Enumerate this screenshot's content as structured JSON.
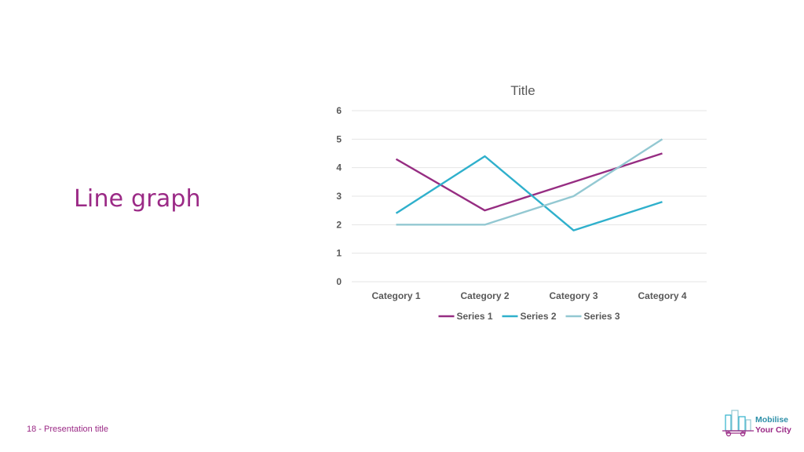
{
  "slide": {
    "heading": "Line graph",
    "footer": "18 - Presentation title",
    "logo": {
      "line1": "Mobilise",
      "line2": "Your City"
    }
  },
  "colors": {
    "accent": "#9b2a86",
    "series": [
      "#962d82",
      "#2fb0cc",
      "#93c8d2"
    ],
    "grid": "#e4e4e4",
    "text": "#595959"
  },
  "chart_data": {
    "type": "line",
    "title": "Title",
    "categories": [
      "Category 1",
      "Category 2",
      "Category 3",
      "Category 4"
    ],
    "series": [
      {
        "name": "Series 1",
        "values": [
          4.3,
          2.5,
          3.5,
          4.5
        ]
      },
      {
        "name": "Series 2",
        "values": [
          2.4,
          4.4,
          1.8,
          2.8
        ]
      },
      {
        "name": "Series 3",
        "values": [
          2,
          2,
          3,
          5
        ]
      }
    ],
    "ylim": [
      0,
      6
    ],
    "yticks": [
      0,
      1,
      2,
      3,
      4,
      5,
      6
    ],
    "grid": true,
    "legend": "bottom"
  }
}
